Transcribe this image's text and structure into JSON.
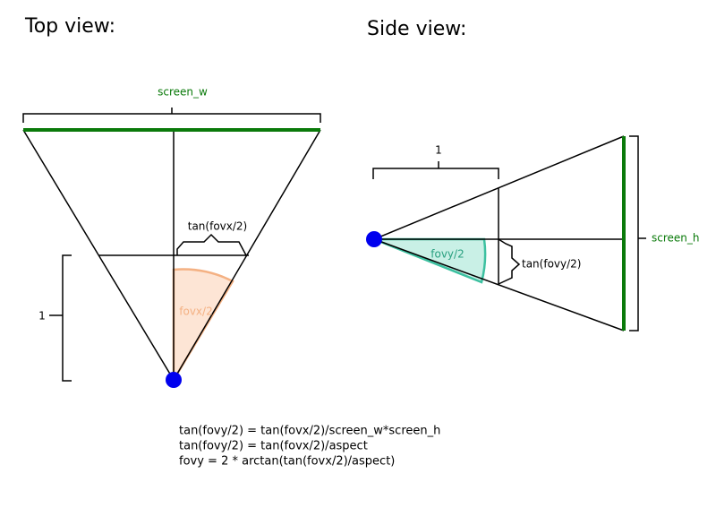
{
  "top_view": {
    "title": "Top view:",
    "width_label": "screen_w",
    "tan_label": "tan(fovx/2)",
    "distance_label": "1",
    "angle_label": "fovx/2"
  },
  "side_view": {
    "title": "Side view:",
    "height_label": "screen_h",
    "tan_label": "tan(fovy/2)",
    "distance_label": "1",
    "angle_label": "fovy/2"
  },
  "formulas": [
    "tan(fovy/2) = tan(fovx/2)/screen_w*screen_h",
    "tan(fovy/2) = tan(fovx/2)/aspect",
    "fovy = 2 * arctan(tan(fovx/2)/aspect)"
  ]
}
